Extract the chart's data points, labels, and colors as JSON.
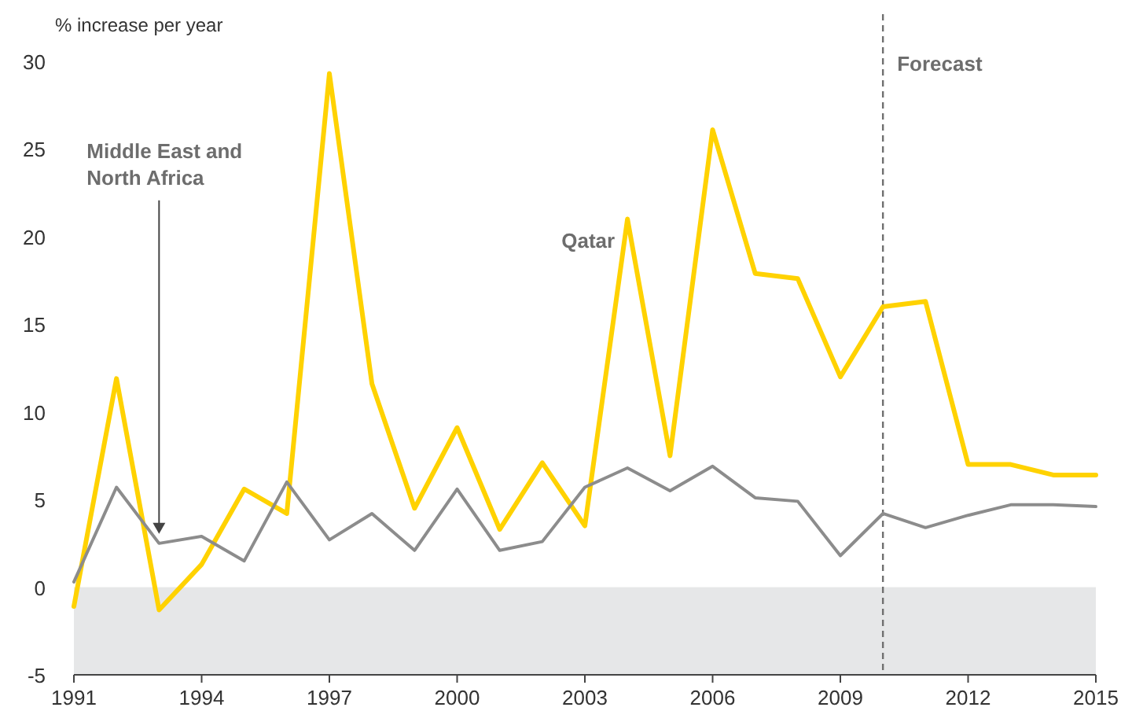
{
  "chart_data": {
    "type": "line",
    "ylabel": "% increase per year",
    "x": [
      1991,
      1992,
      1993,
      1994,
      1995,
      1996,
      1997,
      1998,
      1999,
      2000,
      2001,
      2002,
      2003,
      2004,
      2005,
      2006,
      2007,
      2008,
      2009,
      2010,
      2011,
      2012,
      2013,
      2014,
      2015
    ],
    "series": [
      {
        "name": "Qatar",
        "color": "#ffd200",
        "values": [
          -1.1,
          11.9,
          -1.3,
          1.3,
          5.6,
          4.2,
          29.3,
          11.6,
          4.5,
          9.1,
          3.3,
          7.1,
          3.5,
          21,
          7.5,
          26.1,
          17.9,
          17.6,
          12,
          16,
          16.3,
          7,
          7,
          6.4,
          6.4
        ]
      },
      {
        "name": "Middle East and North Africa",
        "color": "#8c8c8c",
        "values": [
          0.3,
          5.7,
          2.5,
          2.9,
          1.5,
          6,
          2.7,
          4.2,
          2.1,
          5.6,
          2.1,
          2.6,
          5.7,
          6.8,
          5.5,
          6.9,
          5.1,
          4.9,
          1.8,
          4.2,
          3.4,
          4.1,
          4.7,
          4.7,
          4.6
        ]
      }
    ],
    "xlim": [
      1991,
      2015
    ],
    "xticks": [
      1991,
      1994,
      1997,
      2000,
      2003,
      2006,
      2009,
      2012,
      2015
    ],
    "ylim": [
      -5,
      30
    ],
    "yticks": [
      -5,
      0,
      5,
      10,
      15,
      20,
      25,
      30
    ],
    "grid": false,
    "legend": false,
    "marker": "none",
    "line_style": "solid",
    "bands": [
      {
        "axis": "y",
        "from": -5,
        "to": 0,
        "color": "#e6e7e8"
      }
    ],
    "ref_lines": [
      {
        "axis": "x",
        "value": 2010,
        "label": "Forecast",
        "line_style": "dashed",
        "color": "#707070"
      }
    ]
  }
}
